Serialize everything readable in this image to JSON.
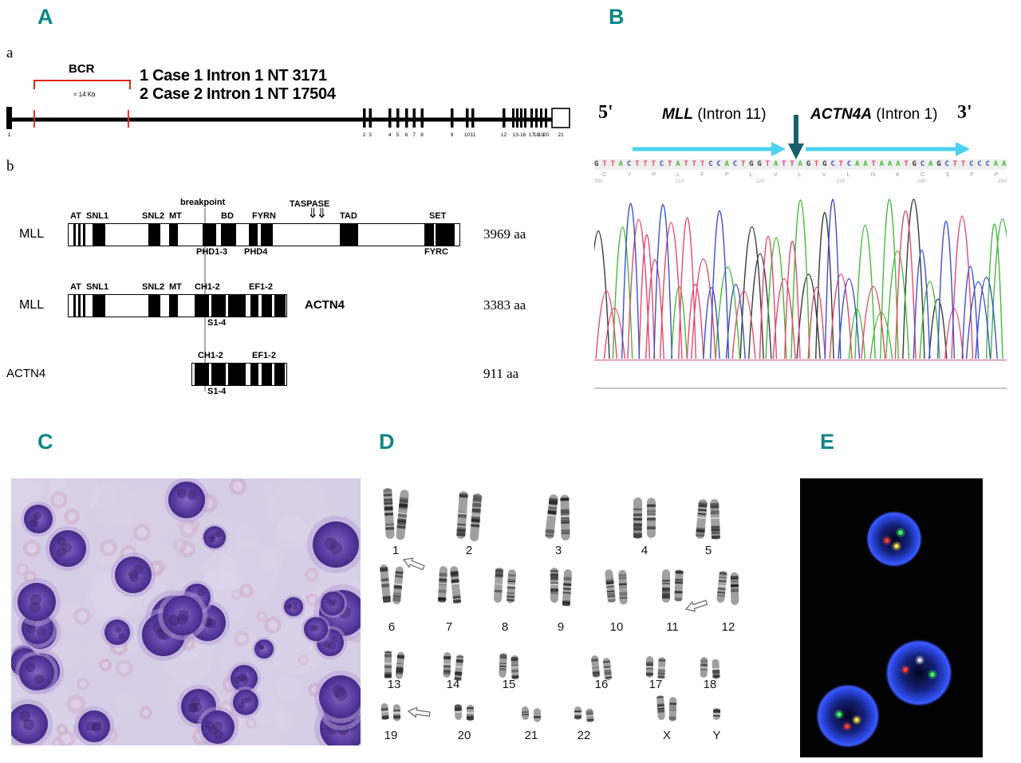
{
  "colors": {
    "panel_label": "#0d8686",
    "bcr_red": "#e42313",
    "cyan_arrow": "#4ad2f0",
    "teal_arrow": "#17606b",
    "base_A": "#46b93c",
    "base_C": "#3c50c8",
    "base_G": "#3a3a3a",
    "base_T": "#e4486e",
    "fish_red": "#ff4033",
    "fish_green": "#3cff55",
    "fish_yellow": "#ffe344",
    "fish_nucleus_blue": "#2b46e0",
    "stain_purple": "#5c3fa4"
  },
  "panelA": {
    "label": "A",
    "sub_a": "a",
    "bcr": "BCR",
    "kb": "≈ 14 Kb",
    "case1": "1 Case 1 Intron 1 NT 3171",
    "case2": "2 Case 2 Intron 1 NT 17504",
    "exon_labels": [
      "1",
      "2",
      "3",
      "4",
      "5",
      "6",
      "7",
      "8",
      "9",
      "10",
      "11",
      "12",
      "13-16",
      "17",
      "18",
      "19",
      "20",
      "21"
    ],
    "sub_b": "b",
    "breakpoint": "breakpoint",
    "taspase": "TASPASE",
    "taspase_arrows": "⇓⇓",
    "row1": {
      "name": "MLL",
      "at": "AT",
      "snl1": "SNL1",
      "snl2": "SNL2",
      "mt": "MT",
      "bd": "BD",
      "fyrn": "FYRN",
      "tad": "TAD",
      "set": "SET",
      "phd13": "PHD1-3",
      "phd4": "PHD4",
      "fyrc": "FYRC",
      "aa": "3969 aa"
    },
    "row2": {
      "name": "MLL",
      "at": "AT",
      "snl1": "SNL1",
      "snl2": "SNL2",
      "mt": "MT",
      "ch": "CH1-2",
      "ef": "EF1-2",
      "fusion": "ACTN4",
      "s14": "S1-4",
      "aa": "3383 aa"
    },
    "row3": {
      "name": "ACTN4",
      "ch": "CH1-2",
      "ef": "EF1-2",
      "s14": "S1-4",
      "aa": "911 aa"
    }
  },
  "panelB": {
    "label": "B",
    "five": "5'",
    "three": "3'",
    "mll_gene": "MLL",
    "mll_rest": " (Intron 11)",
    "actn4_gene": "ACTN4A",
    "actn4_rest": " (Intron 1)",
    "sequence": "GTTACTTTCTATTTCCACTGGTATTAGTGCTCAATAAATGCAGCTTCCCAA",
    "aa_letters": [
      "C",
      "Y",
      "P",
      "L",
      "F",
      "P",
      "L",
      "V",
      "L",
      "V",
      "L",
      "N",
      "K",
      "C",
      "S",
      "F",
      "P"
    ],
    "positions": [
      "200",
      "210",
      "220",
      "230",
      "240",
      "250"
    ]
  },
  "panelC": {
    "label": "C"
  },
  "panelD": {
    "label": "D",
    "rows": [
      [
        "1",
        "2",
        "3",
        "4",
        "5"
      ],
      [
        "6",
        "7",
        "8",
        "9",
        "10",
        "11",
        "12"
      ],
      [
        "13",
        "14",
        "15",
        "16",
        "17",
        "18"
      ],
      [
        "19",
        "20",
        "21",
        "22",
        "X",
        "Y"
      ]
    ]
  },
  "panelE": {
    "label": "E"
  }
}
